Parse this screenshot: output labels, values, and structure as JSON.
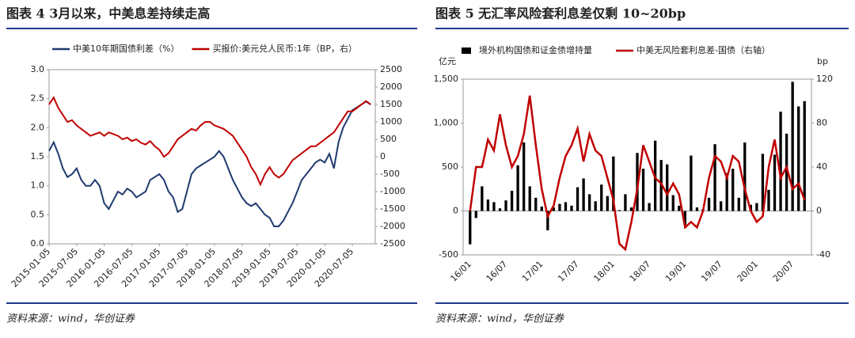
{
  "chart_data": [
    {
      "type": "line",
      "title": "图表 4   3月以来，中美息差持续走高",
      "source": "资料来源：wind，华创证券",
      "x": [
        "2015-01-05",
        "2015-02-05",
        "2015-03-05",
        "2015-04-05",
        "2015-05-05",
        "2015-06-05",
        "2015-07-05",
        "2015-08-05",
        "2015-09-05",
        "2015-10-05",
        "2015-11-05",
        "2015-12-05",
        "2016-01-05",
        "2016-02-05",
        "2016-03-05",
        "2016-04-05",
        "2016-05-05",
        "2016-06-05",
        "2016-07-05",
        "2016-08-05",
        "2016-09-05",
        "2016-10-05",
        "2016-11-05",
        "2016-12-05",
        "2017-01-05",
        "2017-02-05",
        "2017-03-05",
        "2017-04-05",
        "2017-05-05",
        "2017-06-05",
        "2017-07-05",
        "2017-08-05",
        "2017-09-05",
        "2017-10-05",
        "2017-11-05",
        "2017-12-05",
        "2018-01-05",
        "2018-02-05",
        "2018-03-05",
        "2018-04-05",
        "2018-05-05",
        "2018-06-05",
        "2018-07-05",
        "2018-08-05",
        "2018-09-05",
        "2018-10-05",
        "2018-11-05",
        "2018-12-05",
        "2019-01-05",
        "2019-02-05",
        "2019-03-05",
        "2019-04-05",
        "2019-05-05",
        "2019-06-05",
        "2019-07-05",
        "2019-08-05",
        "2019-09-05",
        "2019-10-05",
        "2019-11-05",
        "2019-12-05",
        "2020-01-05",
        "2020-02-05",
        "2020-03-05",
        "2020-04-05",
        "2020-05-05",
        "2020-06-05",
        "2020-07-05",
        "2020-08-05",
        "2020-09-05",
        "2020-10-05",
        "2020-11-05"
      ],
      "series": [
        {
          "name": "中美10年期国债利差（%）",
          "color": "#1f3a6e",
          "axis": "y",
          "values": [
            1.6,
            1.75,
            1.55,
            1.3,
            1.15,
            1.2,
            1.3,
            1.1,
            1.0,
            1.0,
            1.1,
            1.0,
            0.7,
            0.6,
            0.75,
            0.9,
            0.85,
            0.95,
            0.9,
            0.8,
            0.85,
            0.9,
            1.1,
            1.15,
            1.2,
            1.1,
            0.9,
            0.8,
            0.55,
            0.6,
            0.9,
            1.2,
            1.3,
            1.35,
            1.4,
            1.45,
            1.5,
            1.6,
            1.5,
            1.3,
            1.1,
            0.95,
            0.8,
            0.7,
            0.65,
            0.7,
            0.6,
            0.5,
            0.45,
            0.3,
            0.3,
            0.4,
            0.55,
            0.7,
            0.9,
            1.1,
            1.2,
            1.3,
            1.4,
            1.45,
            1.4,
            1.55,
            1.3,
            1.75,
            2.0,
            2.15,
            2.3,
            2.35,
            2.4,
            2.45,
            2.4
          ]
        },
        {
          "name": "买报价:美元兑人民币:1年（BP，右）",
          "color": "#c00000",
          "axis": "y2",
          "values": [
            1500,
            1700,
            1400,
            1200,
            1000,
            1050,
            900,
            800,
            700,
            600,
            650,
            700,
            600,
            700,
            650,
            600,
            500,
            550,
            450,
            500,
            400,
            350,
            450,
            300,
            200,
            0,
            100,
            300,
            500,
            600,
            700,
            800,
            750,
            900,
            1000,
            1000,
            900,
            850,
            800,
            700,
            600,
            400,
            200,
            0,
            -300,
            -500,
            -800,
            -500,
            -300,
            -500,
            -600,
            -500,
            -300,
            -100,
            0,
            100,
            200,
            300,
            300,
            400,
            500,
            600,
            700,
            900,
            1100,
            1300,
            1300,
            1400,
            1500,
            1600,
            1500
          ]
        }
      ],
      "xlim": [
        "2015-01-05",
        "2020-12-05"
      ],
      "xticks": [
        "2015-01-05",
        "2015-07-05",
        "2016-01-05",
        "2016-07-05",
        "2017-01-05",
        "2017-07-05",
        "2018-01-05",
        "2018-07-05",
        "2019-01-05",
        "2019-07-05",
        "2020-01-05",
        "2020-07-05"
      ],
      "ylim": [
        0,
        3
      ],
      "yticks": [
        {
          "value": 0,
          "label": "0.0"
        },
        {
          "value": 0.5,
          "label": "0.5"
        },
        {
          "value": 1,
          "label": "1.0"
        },
        {
          "value": 1.5,
          "label": "1.5"
        },
        {
          "value": 2,
          "label": "2.0"
        },
        {
          "value": 2.5,
          "label": "2.5"
        },
        {
          "value": 3,
          "label": "3.0"
        }
      ],
      "y2lim": [
        -2500,
        2500
      ],
      "y2ticks": [
        -2500,
        -2000,
        -1500,
        -1000,
        -500,
        0,
        500,
        1000,
        1500,
        2000,
        2500
      ]
    },
    {
      "type": "combo",
      "title": "图表 5   无汇率风险套利息差仅剩 10~20bp",
      "source": "资料来源：wind，华创证券",
      "y_label": "亿元",
      "y2_label": "bp",
      "categories": [
        "16/01",
        null,
        null,
        null,
        null,
        null,
        "16/07",
        null,
        null,
        null,
        null,
        null,
        "17/01",
        null,
        null,
        null,
        null,
        null,
        "17/07",
        null,
        null,
        null,
        null,
        null,
        "18/01",
        null,
        null,
        null,
        null,
        null,
        "18/07",
        null,
        null,
        null,
        null,
        null,
        "19/01",
        null,
        null,
        null,
        null,
        null,
        "19/07",
        null,
        null,
        null,
        null,
        null,
        "20/01",
        null,
        null,
        null,
        null,
        null,
        "20/07",
        null,
        null
      ],
      "series": [
        {
          "name": "境外机构国债和证金债增持量",
          "color": "#000000",
          "type": "bar",
          "axis": "y",
          "values": [
            -380,
            -80,
            280,
            130,
            100,
            30,
            120,
            230,
            520,
            780,
            280,
            150,
            50,
            -220,
            40,
            80,
            100,
            60,
            270,
            370,
            190,
            110,
            300,
            170,
            620,
            10,
            190,
            40,
            660,
            480,
            90,
            800,
            580,
            530,
            180,
            60,
            -160,
            630,
            40,
            20,
            150,
            760,
            110,
            430,
            480,
            150,
            780,
            70,
            90,
            650,
            240,
            640,
            1130,
            880,
            1470,
            1190,
            1250
          ]
        },
        {
          "name": "中美无风险套利息差-国债（右轴）",
          "color": "#c00000",
          "type": "line",
          "axis": "y2",
          "values": [
            0,
            40,
            40,
            65,
            55,
            88,
            60,
            40,
            50,
            70,
            105,
            60,
            20,
            -5,
            5,
            30,
            50,
            60,
            75,
            45,
            70,
            55,
            50,
            30,
            10,
            -30,
            -35,
            -10,
            20,
            60,
            45,
            30,
            25,
            15,
            25,
            15,
            -15,
            -10,
            -15,
            0,
            30,
            50,
            45,
            30,
            50,
            45,
            20,
            0,
            -10,
            -5,
            40,
            65,
            30,
            40,
            20,
            25,
            10
          ]
        }
      ],
      "ylim": [
        -500,
        1500
      ],
      "yticks": [
        -500,
        0,
        500,
        {
          "value": 1000,
          "label": "1,000"
        },
        {
          "value": 1500,
          "label": "1,500"
        }
      ],
      "y2lim": [
        -40,
        120
      ],
      "y2ticks": [
        -40,
        0,
        40,
        80,
        120
      ]
    }
  ]
}
